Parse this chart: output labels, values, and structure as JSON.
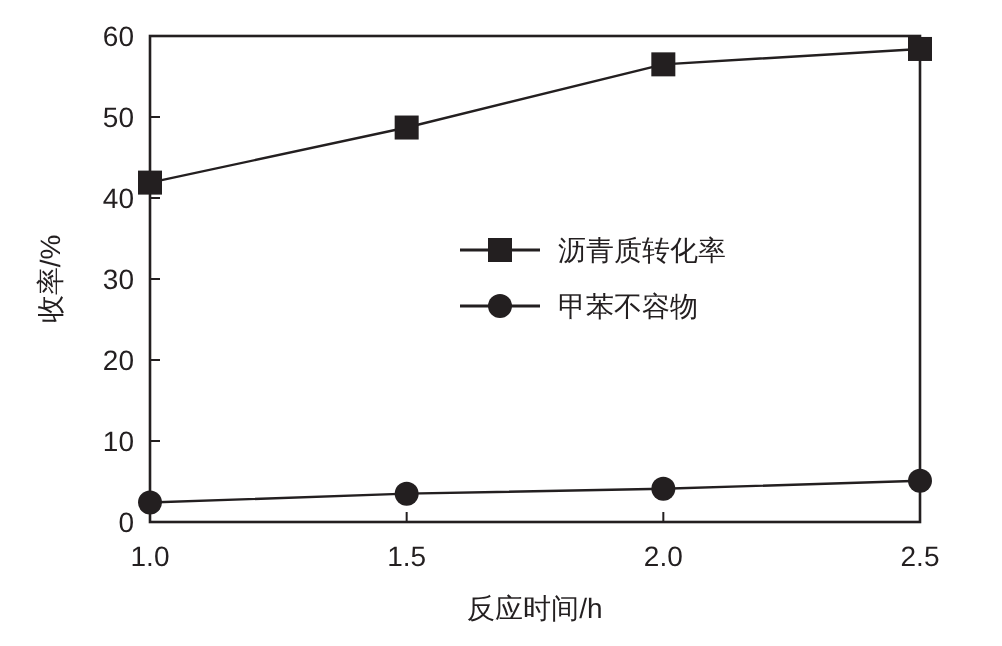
{
  "chart_data": {
    "type": "line",
    "xlabel": "反应时间/h",
    "ylabel": "收率/%",
    "x": [
      1.0,
      1.5,
      2.0,
      2.5
    ],
    "series": [
      {
        "name": "沥青质转化率",
        "color": "#231f20",
        "marker": "square",
        "values": [
          41.9,
          48.7,
          56.5,
          58.4
        ]
      },
      {
        "name": "甲苯不容物",
        "color": "#231f20",
        "marker": "circle",
        "values": [
          2.4,
          3.5,
          4.1,
          5.1
        ]
      }
    ],
    "xlim": [
      1.0,
      2.5
    ],
    "xticks": [
      {
        "value": 1.0,
        "label": "1.0"
      },
      {
        "value": 1.5,
        "label": "1.5"
      },
      {
        "value": 2.0,
        "label": "2.0"
      },
      {
        "value": 2.5,
        "label": "2.5"
      }
    ],
    "ylim": [
      0,
      60
    ],
    "yticks": [
      0,
      10,
      20,
      30,
      40,
      50,
      60
    ],
    "legend": "center",
    "grid": false
  }
}
